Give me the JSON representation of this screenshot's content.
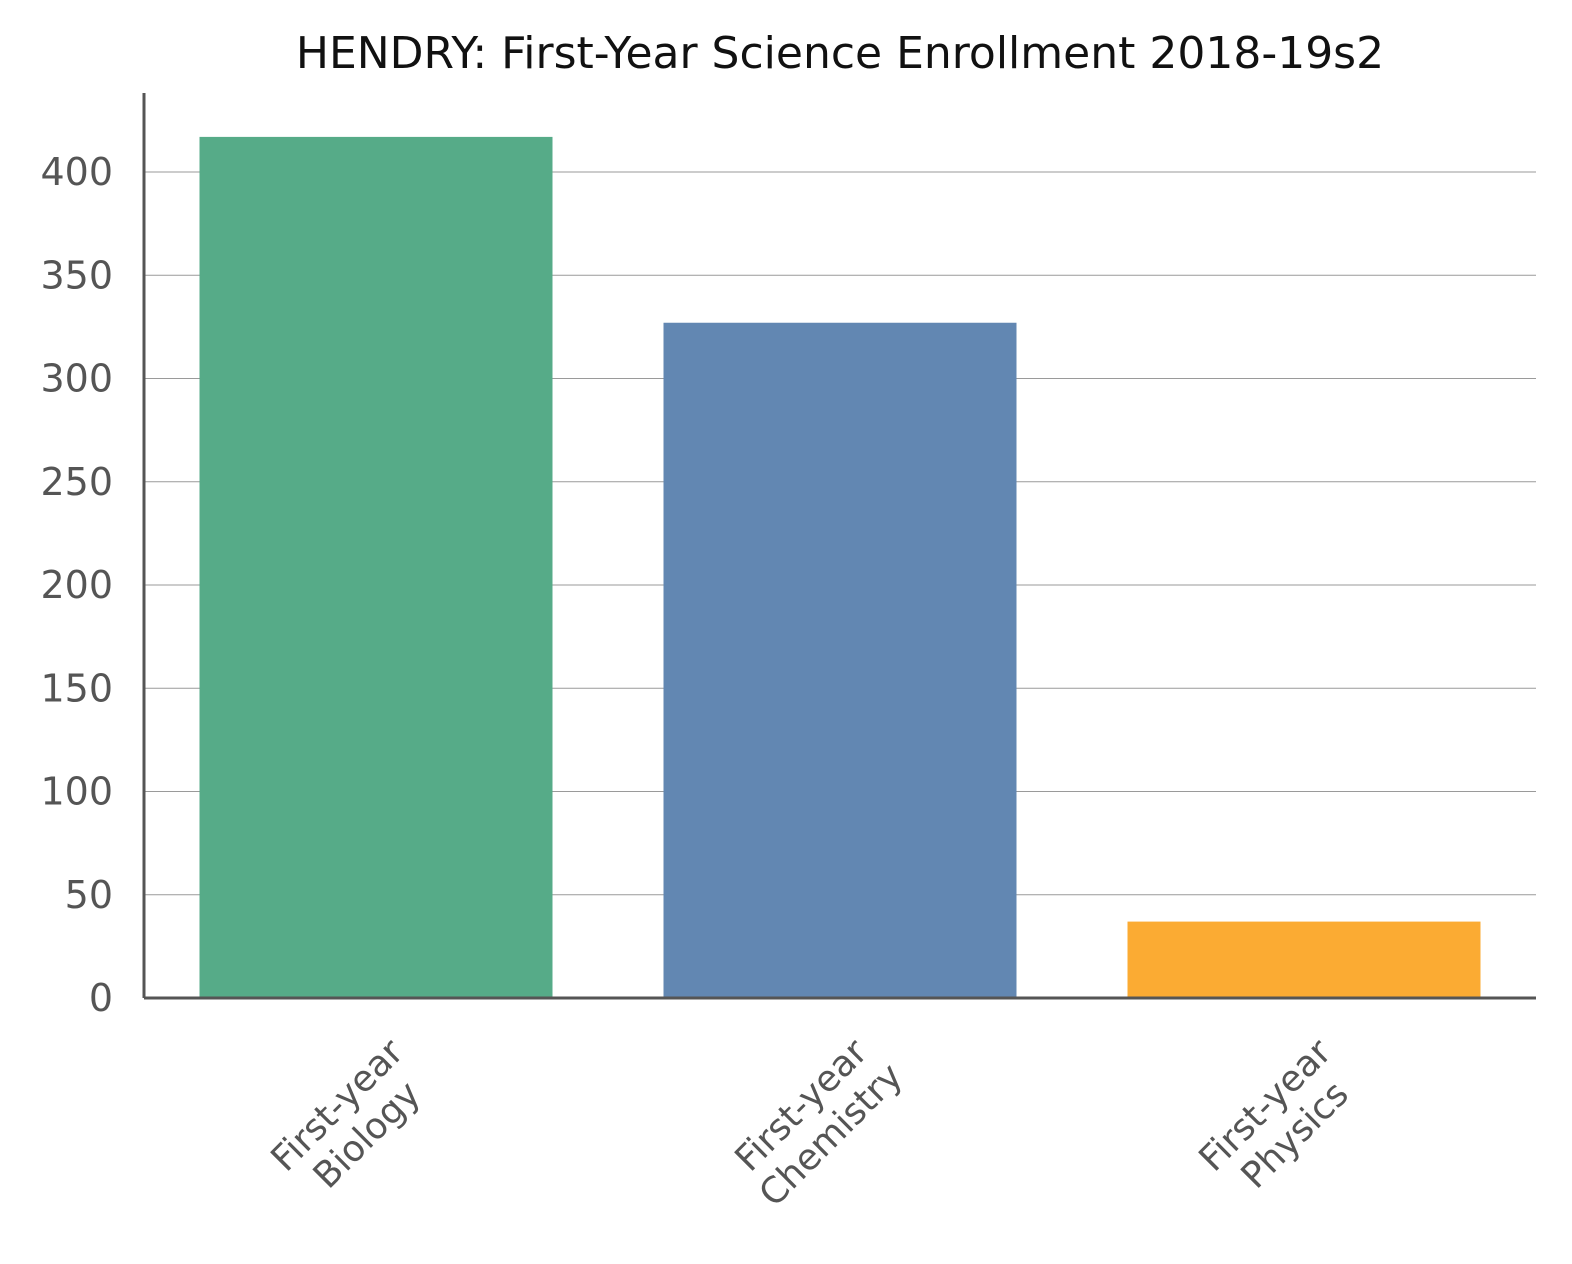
{
  "chart_data": {
    "type": "bar",
    "title": "HENDRY: First-Year Science Enrollment 2018-19s2",
    "categories": [
      [
        "First-year",
        "Biology"
      ],
      [
        "First-year",
        "Chemistry"
      ],
      [
        "First-year",
        "Physics"
      ]
    ],
    "values": [
      417,
      327,
      37
    ],
    "colors": [
      "#56ab88",
      "#6287b2",
      "#fbab33"
    ],
    "xlabel": "",
    "ylabel": "",
    "ylim": [
      0,
      438
    ],
    "yticks": [
      0,
      50,
      100,
      150,
      200,
      250,
      300,
      350,
      400
    ],
    "grid": true,
    "legend": "none"
  }
}
